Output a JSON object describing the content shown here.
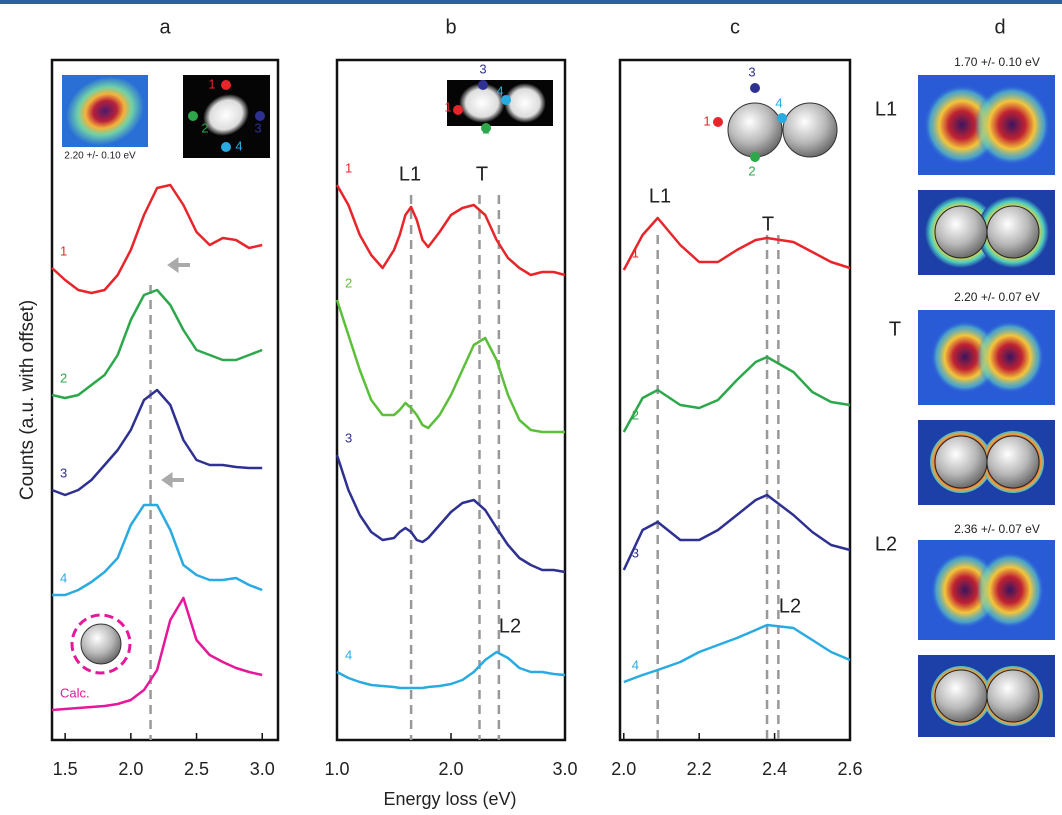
{
  "chart_data": [
    {
      "type": "line",
      "title": "a",
      "ylabel": "Counts (a.u. with offset)",
      "xlim": [
        1.4,
        3.12
      ],
      "xticks": [
        1.5,
        {
          "value": 2,
          "label": "2.0"
        },
        2.5,
        {
          "value": 3,
          "label": "3.0"
        }
      ],
      "ylim": [
        0,
        680
      ],
      "x": [
        1.4,
        1.5,
        1.6,
        1.7,
        1.8,
        1.9,
        2.0,
        2.1,
        2.2,
        2.3,
        2.4,
        2.5,
        2.6,
        2.7,
        2.8,
        2.9,
        3.0
      ],
      "series": [
        {
          "name": "1",
          "color": "#e8252a",
          "values": [
            472,
            460,
            450,
            447,
            450,
            465,
            490,
            525,
            552,
            555,
            535,
            508,
            495,
            502,
            500,
            492,
            495
          ]
        },
        {
          "name": "2",
          "color": "#2ca84a",
          "values": [
            345,
            342,
            345,
            355,
            365,
            385,
            420,
            445,
            450,
            435,
            410,
            390,
            385,
            380,
            380,
            385,
            390
          ]
        },
        {
          "name": "3",
          "color": "#2e3192",
          "values": [
            250,
            245,
            250,
            260,
            275,
            290,
            310,
            340,
            350,
            335,
            300,
            280,
            275,
            275,
            273,
            272,
            272
          ]
        },
        {
          "name": "4",
          "color": "#29abe2",
          "values": [
            145,
            145,
            150,
            158,
            168,
            182,
            215,
            235,
            235,
            210,
            175,
            165,
            160,
            160,
            162,
            155,
            150
          ]
        },
        {
          "name": "Calc.",
          "color": "#e6179a",
          "values": [
            30,
            31,
            32,
            33,
            34,
            36,
            40,
            50,
            70,
            120,
            142,
            100,
            85,
            78,
            72,
            68,
            65
          ]
        }
      ],
      "vlines": [
        2.15
      ],
      "annotations": [
        "2.20 +/- 0.10 eV"
      ],
      "inset_labels": [
        "1",
        "2",
        "3",
        "4"
      ]
    },
    {
      "type": "line",
      "title": "b",
      "xlabel": "Energy loss (eV)",
      "xlim": [
        1.0,
        3.0
      ],
      "xticks": [
        {
          "value": 1,
          "label": "1.0"
        },
        {
          "value": 2,
          "label": "2.0"
        },
        {
          "value": 3,
          "label": "3.0"
        }
      ],
      "ylim": [
        0,
        680
      ],
      "x": [
        1.0,
        1.1,
        1.2,
        1.3,
        1.4,
        1.5,
        1.55,
        1.6,
        1.65,
        1.7,
        1.75,
        1.8,
        1.9,
        2.0,
        2.1,
        2.2,
        2.3,
        2.4,
        2.5,
        2.6,
        2.7,
        2.8,
        2.9,
        3.0
      ],
      "series": [
        {
          "name": "1",
          "color": "#e8252a",
          "values": [
            555,
            535,
            505,
            485,
            472,
            490,
            505,
            525,
            533,
            520,
            500,
            493,
            508,
            525,
            532,
            535,
            525,
            500,
            482,
            472,
            465,
            468,
            468,
            465
          ]
        },
        {
          "name": "2",
          "color": "#5cbf3a",
          "values": [
            440,
            405,
            370,
            340,
            325,
            325,
            330,
            337,
            332,
            325,
            315,
            312,
            325,
            345,
            370,
            395,
            402,
            380,
            345,
            320,
            310,
            308,
            308,
            308
          ]
        },
        {
          "name": "3",
          "color": "#2e3192",
          "values": [
            285,
            250,
            225,
            208,
            200,
            202,
            208,
            212,
            208,
            200,
            198,
            202,
            215,
            228,
            237,
            240,
            230,
            212,
            195,
            182,
            175,
            170,
            170,
            168
          ]
        },
        {
          "name": "4",
          "color": "#29abe2",
          "values": [
            68,
            62,
            58,
            55,
            54,
            53,
            52,
            52,
            52,
            52,
            52,
            53,
            54,
            56,
            60,
            68,
            80,
            88,
            82,
            72,
            68,
            68,
            66,
            65
          ]
        }
      ],
      "vlines": [
        1.65,
        2.25,
        2.42
      ],
      "annotations": [
        "L1",
        "T",
        "L2"
      ],
      "inset_labels": [
        "3",
        "1",
        "4",
        "2"
      ]
    },
    {
      "type": "line",
      "title": "c",
      "xlim": [
        1.99,
        2.6
      ],
      "xticks": [
        {
          "value": 2,
          "label": "2.0"
        },
        2.2,
        2.4,
        2.6
      ],
      "ylim": [
        0,
        680
      ],
      "x": [
        2.0,
        2.05,
        2.09,
        2.15,
        2.2,
        2.25,
        2.3,
        2.35,
        2.38,
        2.45,
        2.5,
        2.55,
        2.6
      ],
      "series": [
        {
          "name": "1",
          "color": "#e8252a",
          "values": [
            470,
            505,
            522,
            495,
            478,
            478,
            490,
            500,
            502,
            498,
            488,
            478,
            472
          ]
        },
        {
          "name": "2",
          "color": "#2ca84a",
          "values": [
            308,
            342,
            350,
            335,
            332,
            340,
            360,
            378,
            383,
            368,
            348,
            338,
            335
          ]
        },
        {
          "name": "3",
          "color": "#2e3192",
          "values": [
            170,
            210,
            218,
            200,
            200,
            210,
            225,
            240,
            245,
            225,
            208,
            195,
            190
          ]
        },
        {
          "name": "4",
          "color": "#29abe2",
          "values": [
            58,
            65,
            70,
            78,
            88,
            95,
            102,
            110,
            115,
            112,
            100,
            88,
            80
          ]
        }
      ],
      "vlines": [
        2.09,
        2.38,
        2.41
      ],
      "annotations": [
        "L1",
        "T",
        "L2"
      ],
      "inset_labels": [
        "3",
        "1",
        "4",
        "2"
      ]
    }
  ],
  "panel_d": {
    "title": "d",
    "modes": [
      {
        "label": "L1",
        "energy": "1.70 +/- 0.10 eV"
      },
      {
        "label": "T",
        "energy": "2.20 +/- 0.07 eV"
      },
      {
        "label": "L2",
        "energy": "2.36 +/- 0.07 eV"
      }
    ]
  }
}
